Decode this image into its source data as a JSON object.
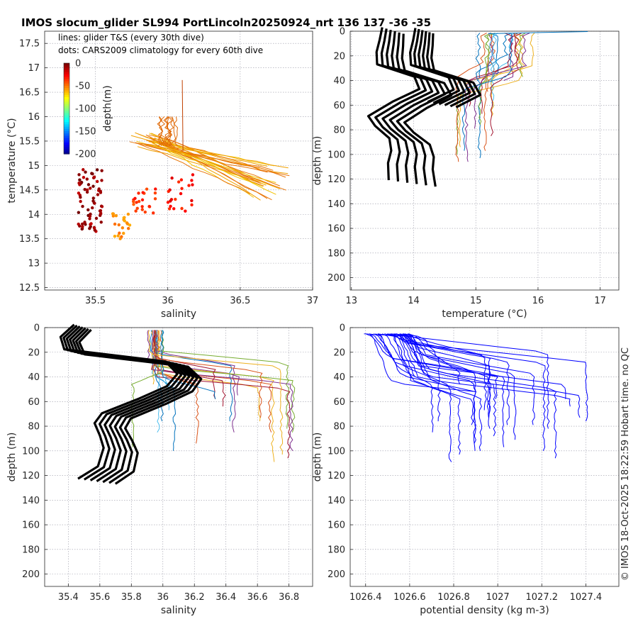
{
  "figure": {
    "title": "IMOS slocum_glider SL994 PortLincoln20250924_nrt 136  137  -36  -35",
    "footer": "© IMOS 18-Oct-2025 18:22:59 Hobart time. no QC",
    "legend_lines": "lines: glider T&S (every 30th dive)",
    "legend_dots": "dots: CARS2009 climatology for every 60th dive"
  },
  "colors": {
    "axis": "#262626",
    "density_line": "#0000ff",
    "climatology_line": "#000000"
  },
  "chart_data": [
    {
      "id": "ts",
      "type": "scatter",
      "xlabel": "salinity",
      "ylabel": "temperature (°C)",
      "xlim": [
        35.15,
        37.0
      ],
      "ylim": [
        12.45,
        17.75
      ],
      "xticks": [
        "35.5",
        "36",
        "36.5",
        "37"
      ],
      "xtick_values": [
        35.5,
        36.0,
        36.5,
        37.0
      ],
      "yticks": [
        "12.5",
        "13",
        "13.5",
        "14",
        "14.5",
        "15",
        "15.5",
        "16",
        "16.5",
        "17",
        "17.5"
      ],
      "ytick_values": [
        12.5,
        13,
        13.5,
        14,
        14.5,
        15,
        15.5,
        16,
        16.5,
        17,
        17.5
      ],
      "grid": true,
      "colorbar": {
        "label": "depth(m)",
        "ticks": [
          "0",
          "-50",
          "-100",
          "-150",
          "-200"
        ],
        "tick_values": [
          0,
          -50,
          -100,
          -150,
          -200
        ]
      },
      "glider_lines": {
        "description": "glider T&S profiles, warm surface end to cooler bottom end",
        "start_salinity_range": [
          35.72,
          35.95
        ],
        "start_temperature_range": [
          15.4,
          15.7
        ],
        "end_salinity_range": [
          36.55,
          36.85
        ],
        "end_temperature_range": [
          14.3,
          15.0
        ],
        "vertical_trace": {
          "salinity": 36.1,
          "temperature_range": [
            15.3,
            16.75
          ]
        }
      },
      "climatology_dots": [
        {
          "cluster": "A",
          "salinity_range": [
            35.38,
            35.55
          ],
          "temperature_range": [
            13.65,
            14.95
          ],
          "depth": -5
        },
        {
          "cluster": "B",
          "salinity_range": [
            35.62,
            35.75
          ],
          "temperature_range": [
            13.5,
            14.05
          ],
          "depth": -60
        },
        {
          "cluster": "C",
          "salinity_range": [
            35.75,
            35.92
          ],
          "temperature_range": [
            14.0,
            14.55
          ],
          "depth": -40
        },
        {
          "cluster": "D",
          "salinity_range": [
            36.0,
            36.18
          ],
          "temperature_range": [
            14.05,
            14.85
          ],
          "depth": -30
        }
      ]
    },
    {
      "id": "temp_depth",
      "type": "line",
      "xlabel": "temperature (°C)",
      "ylabel": "depth (m)",
      "xlim": [
        12.98,
        17.3
      ],
      "ylim": [
        210,
        0
      ],
      "xticks": [
        "13",
        "14",
        "15",
        "16",
        "17"
      ],
      "xtick_values": [
        13,
        14,
        15,
        16,
        17
      ],
      "yticks": [
        "0",
        "20",
        "40",
        "60",
        "80",
        "100",
        "120",
        "140",
        "160",
        "180",
        "200"
      ],
      "ytick_values": [
        0,
        20,
        40,
        60,
        80,
        100,
        120,
        140,
        160,
        180,
        200
      ],
      "grid": true,
      "climatology_profile": {
        "temperature": [
          13.7,
          13.68,
          13.65,
          13.68,
          14.3,
          14.4,
          14.0,
          13.62,
          13.75,
          14.0,
          14.05,
          14.02,
          14.05
        ],
        "depth": [
          0,
          10,
          20,
          30,
          40,
          50,
          60,
          72,
          80,
          90,
          100,
          110,
          124
        ]
      },
      "glider_profile_range": {
        "surface_temperature": [
          15.0,
          16.8
        ],
        "bottom_temperature": [
          14.6,
          15.3
        ],
        "max_depth": 111
      }
    },
    {
      "id": "sal_depth",
      "type": "line",
      "xlabel": "salinity",
      "ylabel": "depth (m)",
      "xlim": [
        35.25,
        36.95
      ],
      "ylim": [
        210,
        0
      ],
      "xticks": [
        "35.4",
        "35.6",
        "35.8",
        "36",
        "36.2",
        "36.4",
        "36.6",
        "36.8"
      ],
      "xtick_values": [
        35.4,
        35.6,
        35.8,
        36.0,
        36.2,
        36.4,
        36.6,
        36.8
      ],
      "yticks": [
        "0",
        "20",
        "40",
        "60",
        "80",
        "100",
        "120",
        "140",
        "160",
        "180",
        "200"
      ],
      "ytick_values": [
        0,
        20,
        40,
        60,
        80,
        100,
        120,
        140,
        160,
        180,
        200
      ],
      "grid": true,
      "climatology_profile": {
        "salinity": [
          35.5,
          35.42,
          35.45,
          36.1,
          36.18,
          36.12,
          35.95,
          35.72,
          35.68,
          35.72,
          35.75,
          35.72,
          35.6
        ],
        "depth": [
          0,
          10,
          20,
          30,
          40,
          50,
          60,
          72,
          80,
          90,
          100,
          115,
          125
        ]
      },
      "glider_profile_range": {
        "surface_salinity": [
          35.9,
          36.0
        ],
        "bottom_salinity": [
          35.8,
          36.85
        ],
        "max_depth": 111
      }
    },
    {
      "id": "dens_depth",
      "type": "line",
      "xlabel": "potential density (kg m-3)",
      "ylabel": "depth (m)",
      "xlim": [
        1026.33,
        1027.55
      ],
      "ylim": [
        210,
        0
      ],
      "xticks": [
        "1026.4",
        "1026.6",
        "1026.8",
        "1027",
        "1027.2",
        "1027.4"
      ],
      "xtick_values": [
        1026.4,
        1026.6,
        1026.8,
        1027.0,
        1027.2,
        1027.4
      ],
      "yticks": [
        "0",
        "20",
        "40",
        "60",
        "80",
        "100",
        "120",
        "140",
        "160",
        "180",
        "200"
      ],
      "ytick_values": [
        0,
        20,
        40,
        60,
        80,
        100,
        120,
        140,
        160,
        180,
        200
      ],
      "grid": true,
      "glider_profile_range": {
        "surface_density": [
          1026.38,
          1026.6
        ],
        "bottom_density": [
          1026.7,
          1027.42
        ],
        "max_depth": 111
      }
    }
  ]
}
